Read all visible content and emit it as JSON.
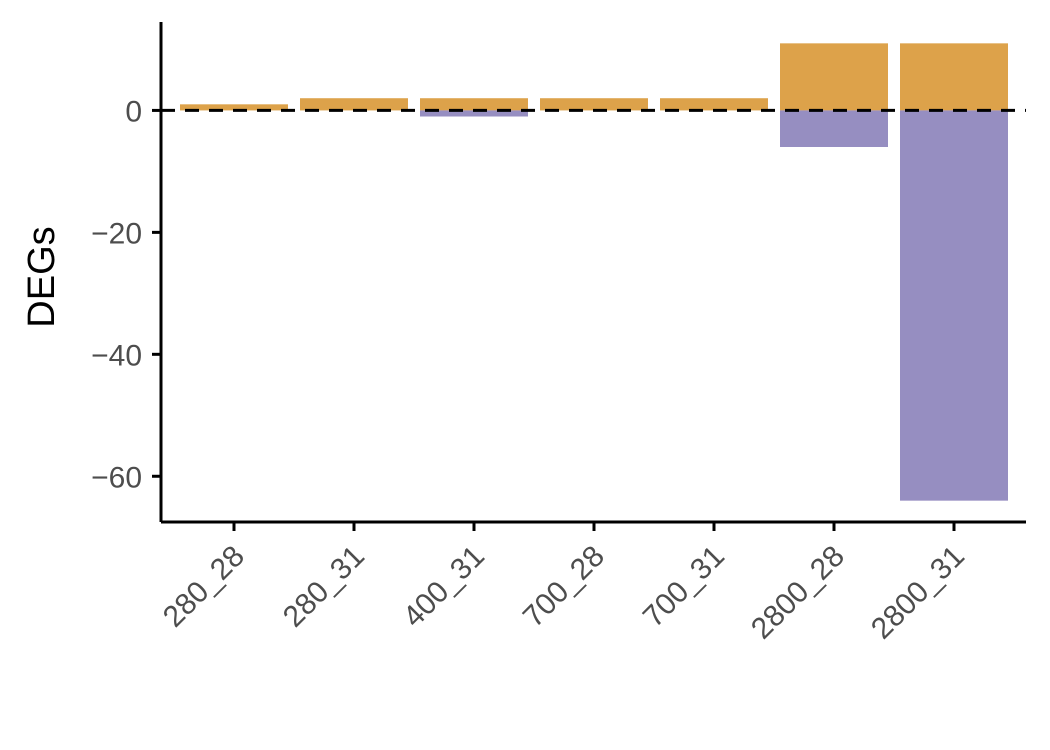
{
  "chart_data": {
    "type": "bar",
    "title": "",
    "xlabel": "",
    "ylabel": "DEGs",
    "categories": [
      "280_28",
      "280_31",
      "400_31",
      "700_28",
      "700_31",
      "2800_28",
      "2800_31"
    ],
    "series": [
      {
        "values": [
          1,
          2,
          2,
          2,
          2,
          11,
          11
        ],
        "color": "#DDA24A"
      },
      {
        "values": [
          0,
          0,
          -1,
          0,
          0,
          -6,
          -64
        ],
        "color": "#968EC1"
      }
    ],
    "ylim": [
      -67.5,
      14.5
    ],
    "yticks": [
      0,
      -20,
      -40,
      -60
    ],
    "reference_line": {
      "y": 0,
      "style": "dashed",
      "color": "#000000"
    },
    "grid": false,
    "legend": "none"
  }
}
